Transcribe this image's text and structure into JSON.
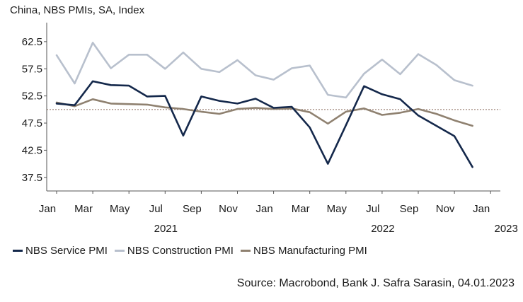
{
  "chart_data": {
    "type": "line",
    "title": "China, NBS PMIs, SA, Index",
    "xlabel": "",
    "ylabel": "",
    "ylim": [
      35.0,
      66.0
    ],
    "yticks": [
      37.5,
      42.5,
      47.5,
      52.5,
      57.5,
      62.5
    ],
    "ytick_labels": [
      "37.5",
      "42.5",
      "47.5",
      "52.5",
      "57.5",
      "62.5"
    ],
    "reference_line": 50,
    "x_month_labels": [
      {
        "label": "Jan",
        "index": 0
      },
      {
        "label": "Mar",
        "index": 2
      },
      {
        "label": "May",
        "index": 4
      },
      {
        "label": "Jul",
        "index": 6
      },
      {
        "label": "Sep",
        "index": 8
      },
      {
        "label": "Nov",
        "index": 10
      },
      {
        "label": "Jan",
        "index": 12
      },
      {
        "label": "Mar",
        "index": 14
      },
      {
        "label": "May",
        "index": 16
      },
      {
        "label": "Jul",
        "index": 18
      },
      {
        "label": "Sep",
        "index": 20
      },
      {
        "label": "Nov",
        "index": 22
      },
      {
        "label": "Jan",
        "index": 24
      }
    ],
    "x_year_labels": [
      {
        "label": "2021",
        "index": 6
      },
      {
        "label": "2022",
        "index": 18
      },
      {
        "label": "2023",
        "index": 24
      }
    ],
    "series": [
      {
        "name": "NBS Service PMI",
        "color": "#14284b",
        "values": [
          51.1,
          50.8,
          55.2,
          54.5,
          54.4,
          52.4,
          52.5,
          45.2,
          52.4,
          51.6,
          51.1,
          52.0,
          50.3,
          50.5,
          46.7,
          40.0,
          47.1,
          54.3,
          52.8,
          51.9,
          48.9,
          47.0,
          45.1,
          39.4
        ]
      },
      {
        "name": "NBS Construction PMI",
        "color": "#b8c0cd",
        "values": [
          60.0,
          54.8,
          62.3,
          57.6,
          60.1,
          60.1,
          57.5,
          60.5,
          57.5,
          56.9,
          59.1,
          56.3,
          55.5,
          57.6,
          58.1,
          52.7,
          52.2,
          56.6,
          59.2,
          56.5,
          60.2,
          58.2,
          55.4,
          54.4
        ]
      },
      {
        "name": "NBS Manufacturing PMI",
        "color": "#8f8170",
        "values": [
          51.3,
          50.6,
          51.9,
          51.1,
          51.0,
          50.9,
          50.4,
          50.1,
          49.6,
          49.2,
          50.1,
          50.3,
          50.1,
          50.2,
          49.5,
          47.4,
          49.6,
          50.2,
          49.0,
          49.4,
          50.1,
          49.2,
          48.0,
          47.0
        ]
      }
    ]
  },
  "legend": {
    "items": [
      {
        "label": "NBS Service PMI",
        "color": "#14284b"
      },
      {
        "label": "NBS Construction PMI",
        "color": "#b8c0cd"
      },
      {
        "label": "NBS Manufacturing PMI",
        "color": "#8f8170"
      }
    ]
  },
  "source": "Source: Macrobond, Bank J. Safra Sarasin, 04.01.2023"
}
